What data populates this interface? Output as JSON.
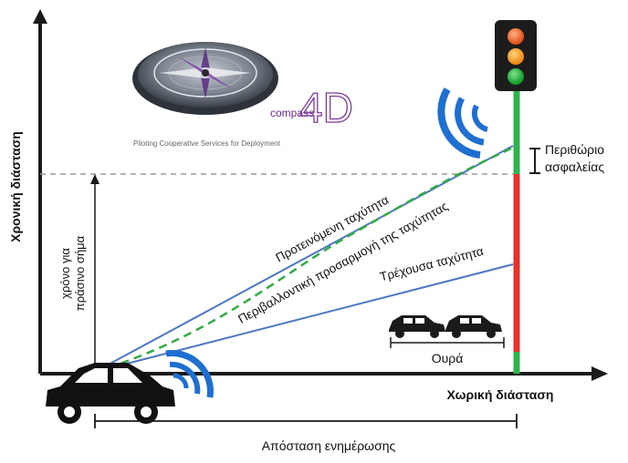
{
  "axes": {
    "y_label": "Χρονική διάσταση",
    "x_label": "Χωρική διάσταση"
  },
  "logo": {
    "brand_small": "compass",
    "brand_big": "4D",
    "tagline": "Piloting Cooperative Services for Deployment"
  },
  "labels": {
    "time_to_green_line1": "χρόνο για",
    "time_to_green_line2": "πράσινο σήμα",
    "suggested_speed": "Προτεινόμενη ταχύτητα",
    "eco_adaptation": "Περιβαλλοντική προσαρμογή της ταχύτητας",
    "current_speed": "Τρέχουσα ταχύτητα",
    "safety_margin_line1": "Περιθώριο",
    "safety_margin_line2": "ασφαλείας",
    "queue": "Ουρά",
    "update_distance": "Απόσταση ενημέρωσης"
  },
  "colors": {
    "axis": "#1a1a1a",
    "speed_line": "#4a76c4",
    "eco_line": "#33aa44",
    "signal_red": "#e8312a",
    "signal_green": "#2db34a",
    "wifi_blue": "#1f6fd1",
    "logo_purple": "#6a2a8a"
  },
  "traffic_light": {
    "lamps": [
      "red",
      "amber",
      "green"
    ],
    "active_lamp": "green"
  },
  "icons": [
    "car-icon",
    "wifi-signal-icon",
    "traffic-light-icon",
    "compass-icon",
    "queue-cars-icon"
  ]
}
